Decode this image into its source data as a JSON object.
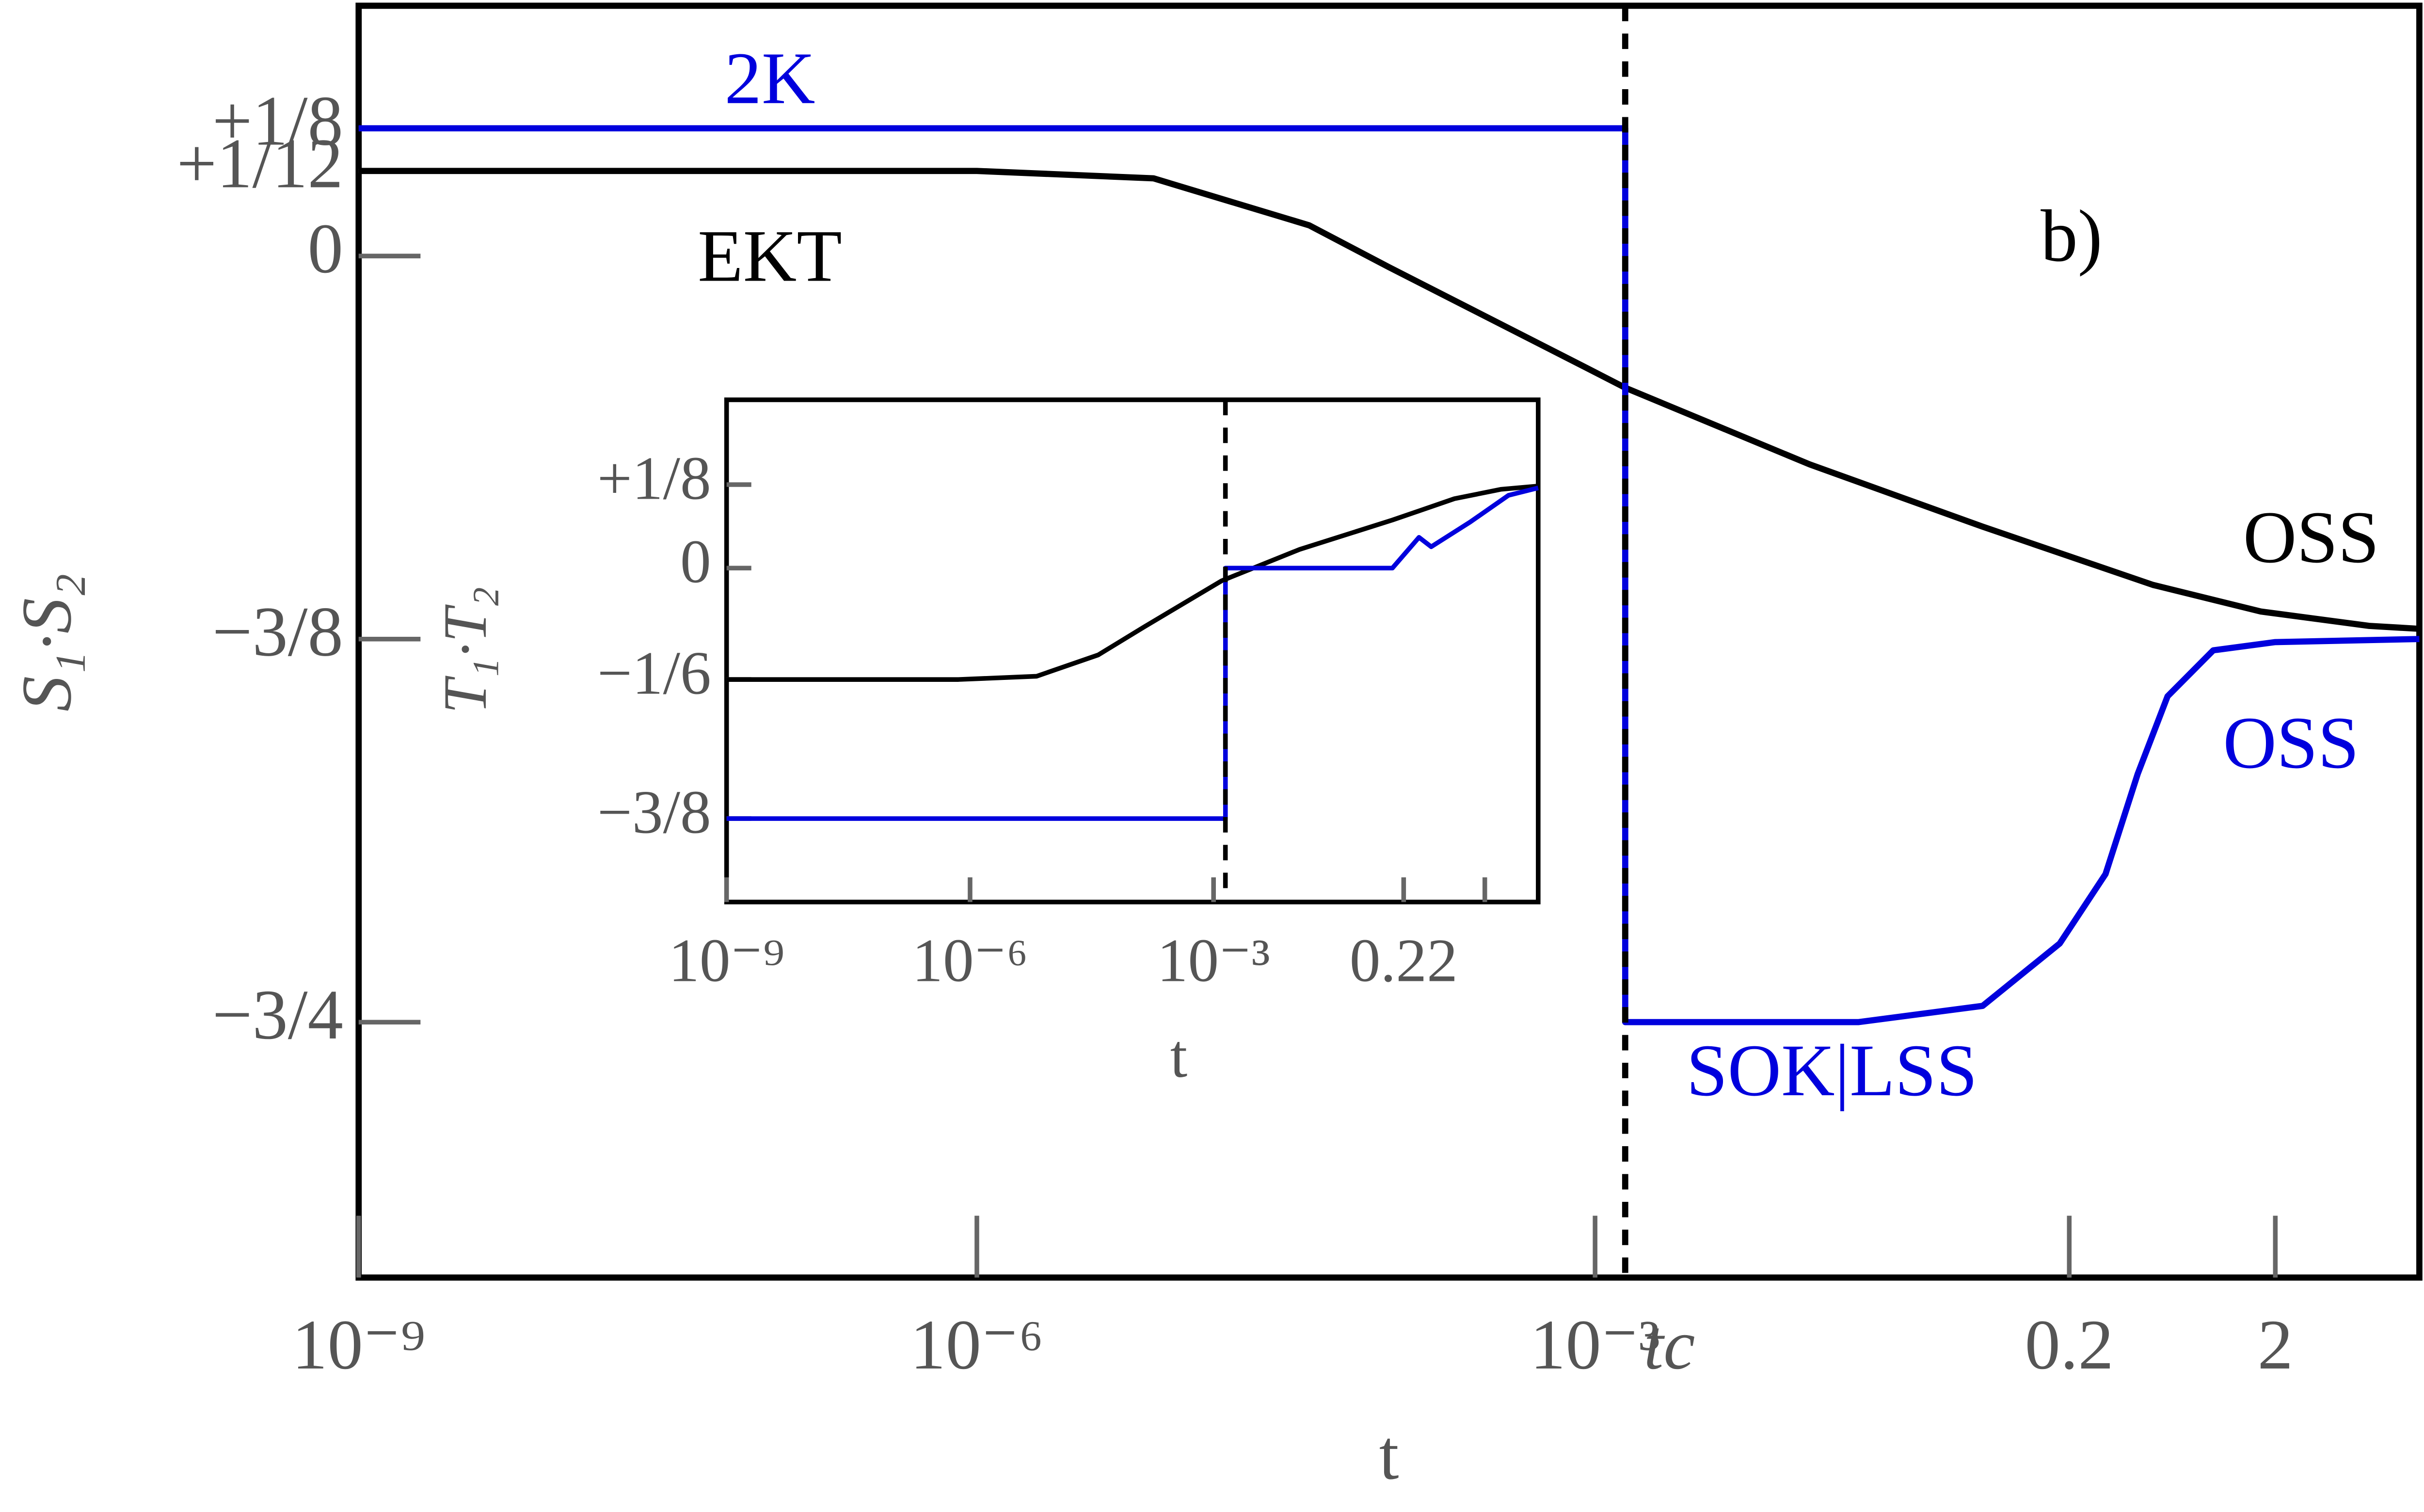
{
  "chart_data": [
    {
      "type": "line",
      "xscale": "log",
      "xlabel": "t",
      "ylabel": "S₁·S₂",
      "xlim": [
        1e-09,
        10
      ],
      "ylim": [
        -1,
        0.245
      ],
      "xticks": [
        {
          "value": 1e-09,
          "label": "10⁻⁹"
        },
        {
          "value": 1e-06,
          "label": "10⁻⁶"
        },
        {
          "value": 0.001,
          "label": "10⁻³"
        },
        {
          "value": 0.0014,
          "label": "tc"
        },
        0.2,
        2
      ],
      "yticks": [
        {
          "value": 0.125,
          "label": "+1/8"
        },
        {
          "value": 0.0833,
          "label": "+1/12"
        },
        0,
        {
          "value": -0.375,
          "label": "−3/8"
        },
        {
          "value": -0.75,
          "label": "−3/4"
        }
      ],
      "vline": 0.0014,
      "series": [
        {
          "color": "#000000",
          "x": [
            1e-09,
            1e-06,
            7.2e-06,
            4.1e-05,
            0.0001,
            0.00084,
            0.0014,
            0.011,
            0.076,
            0.51,
            1.7,
            5.7,
            10
          ],
          "values": [
            0.0833,
            0.0833,
            0.076,
            0.03,
            -0.011,
            -0.106,
            -0.129,
            -0.204,
            -0.265,
            -0.322,
            -0.348,
            -0.362,
            -0.365
          ]
        },
        {
          "color": "#0000dd",
          "x": [
            1e-09,
            0.0014,
            0.0014,
            0.019,
            0.076,
            0.18,
            0.3,
            0.43,
            0.6,
            1.0,
            2,
            10
          ],
          "values": [
            0.125,
            0.125,
            -0.75,
            -0.75,
            -0.734,
            -0.673,
            -0.605,
            -0.507,
            -0.431,
            -0.386,
            -0.378,
            -0.375
          ]
        }
      ],
      "annotations": [
        {
          "text": "2K",
          "color": "#0000dd"
        },
        {
          "text": "EKT",
          "color": "#000000"
        },
        {
          "text": "b)",
          "color": "#000000"
        },
        {
          "text": "OSS",
          "color": "#000000"
        },
        {
          "text": "OSS",
          "color": "#0000dd"
        },
        {
          "text": "SOK|LSS",
          "color": "#0000dd"
        }
      ]
    },
    {
      "type": "line",
      "xscale": "log",
      "xlabel": "t",
      "ylabel": "T₁·T₂",
      "xlim": [
        1e-09,
        10
      ],
      "ylim": [
        -0.5,
        0.252
      ],
      "xticks": [
        {
          "value": 1e-09,
          "label": "10⁻⁹"
        },
        {
          "value": 1e-06,
          "label": "10⁻⁶"
        },
        {
          "value": 0.001,
          "label": "10⁻³"
        },
        0.22
      ],
      "minor_xticks": [
        2.2
      ],
      "yticks": [
        {
          "value": 0.125,
          "label": "+1/8"
        },
        0,
        {
          "value": -0.1667,
          "label": "−1/6"
        },
        {
          "value": -0.375,
          "label": "−3/8"
        }
      ],
      "vline": 0.0014,
      "series": [
        {
          "color": "#000000",
          "x": [
            1e-09,
            7.2e-07,
            6.6e-06,
            3.8e-05,
            0.00014,
            0.00126,
            0.0115,
            0.16,
            0.93,
            3.5,
            10
          ],
          "values": [
            -0.1667,
            -0.1667,
            -0.162,
            -0.13,
            -0.088,
            -0.019,
            0.028,
            0.072,
            0.104,
            0.118,
            0.123
          ]
        },
        {
          "color": "#0000dd",
          "x": [
            1e-09,
            0.0014,
            0.0014,
            0.16,
            0.34,
            0.48,
            1.45,
            4.3,
            10
          ],
          "values": [
            -0.375,
            -0.375,
            0,
            0,
            0.046,
            0.032,
            0.069,
            0.109,
            0.12
          ]
        }
      ]
    }
  ]
}
